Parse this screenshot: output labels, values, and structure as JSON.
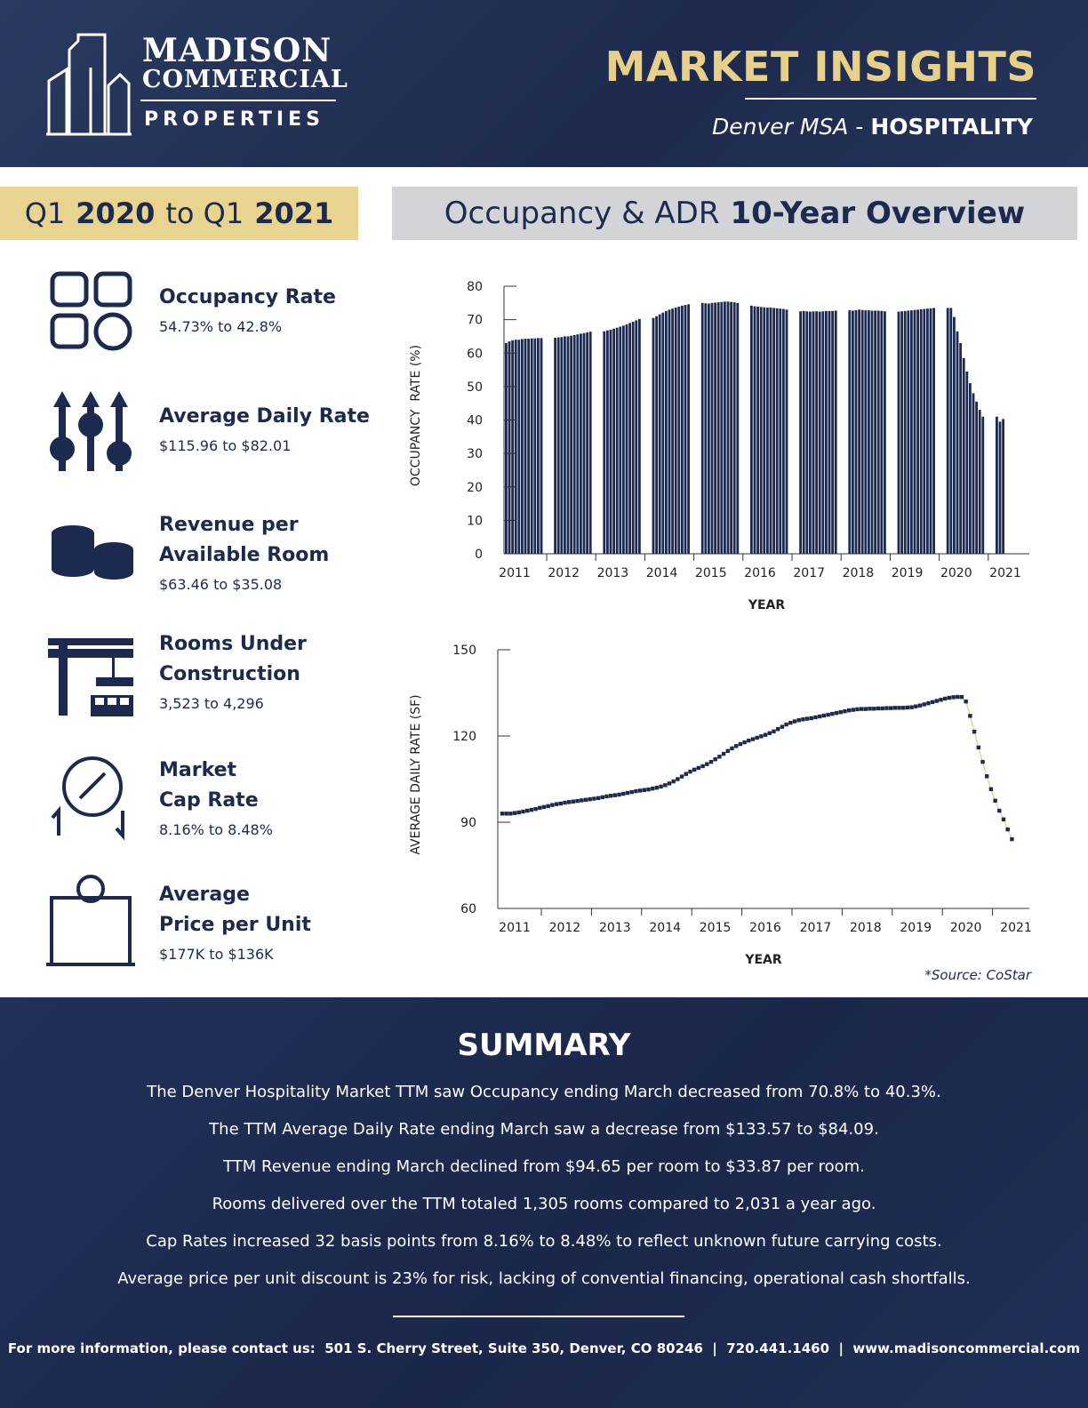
{
  "header": {
    "logo": [
      "MADISON",
      "COMMERCIAL",
      "PROPERTIES"
    ],
    "title": "MARKET INSIGHTS",
    "subtitle_place": "Denver MSA",
    "subtitle_sep": "-",
    "subtitle_sector": "HOSPITALITY"
  },
  "period": [
    {
      "text": "Q1",
      "bold": false
    },
    {
      "text": "2020",
      "bold": true
    },
    {
      "text": "to Q1",
      "bold": false
    },
    {
      "text": "2021",
      "bold": true
    }
  ],
  "overview_title": [
    {
      "text": "Occupancy & ADR",
      "bold": false
    },
    {
      "text": "10-Year Overview",
      "bold": true
    }
  ],
  "stats": [
    {
      "label": [
        "Occupancy Rate"
      ],
      "value": "54.73% to 42.8%"
    },
    {
      "label": [
        "Average Daily Rate"
      ],
      "value": "$115.96 to $82.01"
    },
    {
      "label": [
        "Revenue per",
        "Available Room"
      ],
      "value": "$63.46 to $35.08"
    },
    {
      "label": [
        "Rooms Under",
        "Construction"
      ],
      "value": "3,523 to 4,296"
    },
    {
      "label": [
        "Market",
        "Cap Rate"
      ],
      "value": "8.16% to 8.48%"
    },
    {
      "label": [
        "Average",
        "Price per Unit"
      ],
      "value": "$177K to $136K"
    }
  ],
  "chart_data": [
    {
      "type": "bar",
      "y_label": "OCCUPANCY  RATE (%)",
      "x_label": "YEAR",
      "color": "#1b2a4e",
      "categories": [
        "2011",
        "2012",
        "2013",
        "2014",
        "2015",
        "2016",
        "2017",
        "2018",
        "2019",
        "2020",
        "2021"
      ],
      "values": [
        [
          63,
          63.5,
          63.8,
          64,
          64,
          64.2,
          64.3,
          64.3,
          64.4,
          64.4,
          64.5,
          64.5
        ],
        [
          64.6,
          64.7,
          64.8,
          65,
          65,
          65.2,
          65.4,
          65.6,
          65.8,
          66,
          66.2,
          66.4
        ],
        [
          66.5,
          66.8,
          67,
          67.3,
          67.6,
          67.9,
          68.2,
          68.6,
          69,
          69.4,
          69.8,
          70.2
        ],
        [
          70.5,
          71,
          71.6,
          72.1,
          72.6,
          73,
          73.3,
          73.6,
          73.9,
          74.2,
          74.4,
          74.6
        ],
        [
          75,
          74.9,
          74.8,
          75,
          75.1,
          75.2,
          75.3,
          75.4,
          75.4,
          75.3,
          75.2,
          75
        ],
        [
          74.2,
          74,
          73.9,
          73.8,
          73.7,
          73.6,
          73.6,
          73.5,
          73.4,
          73.3,
          73.2,
          73
        ],
        [
          72.5,
          72.6,
          72.5,
          72.4,
          72.5,
          72.5,
          72.4,
          72.5,
          72.6,
          72.6,
          72.6,
          72.7
        ],
        [
          72.8,
          72.7,
          72.8,
          73,
          72.9,
          72.8,
          72.8,
          72.7,
          72.7,
          72.7,
          72.6,
          72.5
        ],
        [
          72.4,
          72.5,
          72.6,
          72.7,
          72.8,
          72.9,
          73,
          73.1,
          73.2,
          73.3,
          73.4,
          73.5
        ],
        [
          73.5,
          73.5,
          70.8,
          66.5,
          63,
          58.5,
          54.5,
          51,
          48,
          45.5,
          43,
          41
        ],
        [
          41,
          39.5,
          40.3
        ]
      ],
      "ylim": [
        0,
        80
      ],
      "yticks": [
        0,
        10,
        20,
        30,
        40,
        50,
        60,
        70,
        80
      ]
    },
    {
      "type": "line",
      "y_label": "AVERAGE DAILY RATE (SF)",
      "x_label": "YEAR",
      "color": "#1b2a4e",
      "line_color": "#e2c46a",
      "categories": [
        "2011",
        "2012",
        "2013",
        "2014",
        "2015",
        "2016",
        "2017",
        "2018",
        "2019",
        "2020",
        "2021"
      ],
      "values": [
        [
          93,
          93,
          93,
          93.2,
          93.4,
          93.7,
          94,
          94.3,
          94.6,
          95,
          95.3,
          95.6
        ],
        [
          96,
          96.3,
          96.5,
          96.8,
          97,
          97.2,
          97.4,
          97.6,
          97.8,
          98,
          98.2,
          98.4
        ],
        [
          98.7,
          99,
          99.2,
          99.4,
          99.6,
          99.9,
          100.2,
          100.5,
          100.8,
          101,
          101.2,
          101.4
        ],
        [
          101.7,
          102,
          102.4,
          102.9,
          103.5,
          104.2,
          105,
          105.9,
          106.8,
          107.6,
          108.3,
          108.9
        ],
        [
          109.5,
          110.2,
          111,
          111.9,
          112.8,
          113.8,
          114.8,
          115.7,
          116.5,
          117.2,
          117.8,
          118.4
        ],
        [
          118.9,
          119.4,
          119.9,
          120.4,
          121,
          121.6,
          122.4,
          123.2,
          124,
          124.6,
          125.1,
          125.5
        ],
        [
          125.8,
          126,
          126.2,
          126.5,
          126.8,
          127.1,
          127.4,
          127.7,
          128,
          128.3,
          128.6,
          128.9
        ],
        [
          129.1,
          129.3,
          129.4,
          129.4,
          129.5,
          129.5,
          129.6,
          129.6,
          129.7,
          129.7,
          129.8,
          129.8
        ],
        [
          129.8,
          129.9,
          130,
          130.3,
          130.6,
          131,
          131.4,
          131.8,
          132.2,
          132.6,
          133,
          133.3
        ],
        [
          133.5,
          133.6,
          133.57,
          132,
          127,
          121.5,
          116,
          111,
          106,
          101.5,
          97.5,
          94
        ],
        [
          91,
          87.5,
          84.09
        ]
      ],
      "ylim": [
        60,
        150
      ],
      "yticks": [
        60,
        90,
        120,
        150
      ]
    }
  ],
  "source": "*Source: CoStar",
  "summary": {
    "title": "SUMMARY",
    "lines": [
      "The Denver Hospitality Market TTM saw Occupancy ending March decreased from 70.8% to 40.3%.",
      "The TTM Average Daily Rate ending March saw a decrease from $133.57 to $84.09.",
      "TTM Revenue ending March declined from $94.65 per room to $33.87 per room.",
      "Rooms delivered over the TTM totaled 1,305 rooms compared to 2,031 a year ago.",
      "Cap Rates increased 32 basis points from 8.16% to 8.48% to reflect unknown future carrying costs.",
      "Average price per unit discount is 23% for risk, lacking of convential financing, operational cash shortfalls."
    ]
  },
  "footer": "For more information, please contact us:  501 S. Cherry Street, Suite 350, Denver, CO 80246  |  720.441.1460  |  www.madisoncommercial.com"
}
